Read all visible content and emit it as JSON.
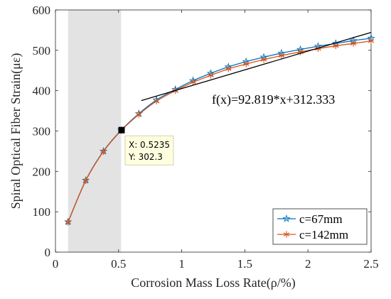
{
  "chart_data": {
    "type": "line",
    "xlabel": "Corrosion Mass Loss Rate(ρ/%)",
    "ylabel": "Spiral Optical Fiber Strain(με)",
    "xlim": [
      0,
      2.5
    ],
    "ylim": [
      0,
      600
    ],
    "xticks": [
      0,
      0.5,
      1,
      1.5,
      2,
      2.5
    ],
    "xtick_labels": [
      "0",
      "0.5",
      "1",
      "1.5",
      "2",
      "2.5"
    ],
    "yticks": [
      0,
      100,
      200,
      300,
      400,
      500,
      600
    ],
    "ytick_labels": [
      "0",
      "100",
      "200",
      "300",
      "400",
      "500",
      "600"
    ],
    "grid": false,
    "legend_position": "bottom-right",
    "shaded_region": {
      "x": [
        0.1,
        0.52
      ],
      "color": "#e3e3e3"
    },
    "series": [
      {
        "name": "c=67mm",
        "color": "#0072BD",
        "marker": "star",
        "x": [
          0.1,
          0.24,
          0.38,
          0.52,
          0.66,
          0.8,
          0.95,
          1.09,
          1.23,
          1.37,
          1.51,
          1.65,
          1.79,
          1.94,
          2.08,
          2.22,
          2.36,
          2.5
        ],
        "y": [
          75,
          178,
          250,
          302,
          343,
          377,
          403,
          425,
          443,
          459,
          472,
          483,
          493,
          502,
          510,
          517,
          524,
          530
        ]
      },
      {
        "name": "c=142mm",
        "color": "#D95319",
        "marker": "asterisk",
        "x": [
          0.1,
          0.24,
          0.38,
          0.52,
          0.66,
          0.8,
          0.95,
          1.09,
          1.23,
          1.37,
          1.51,
          1.65,
          1.79,
          1.94,
          2.08,
          2.22,
          2.36,
          2.5
        ],
        "y": [
          74,
          177,
          249,
          301,
          341,
          374,
          400,
          421,
          438,
          454,
          466,
          477,
          487,
          496,
          504,
          511,
          517,
          523
        ]
      }
    ],
    "fit_line": {
      "label": "f(x)=92.819*x+312.333",
      "slope": 92.819,
      "intercept": 312.333,
      "x_range": [
        0.68,
        2.5
      ],
      "color": "#000000"
    },
    "datatip": {
      "x": 0.5235,
      "y": 302.3,
      "x_text": "X: 0.5235",
      "y_text": "Y: 302.3"
    }
  }
}
